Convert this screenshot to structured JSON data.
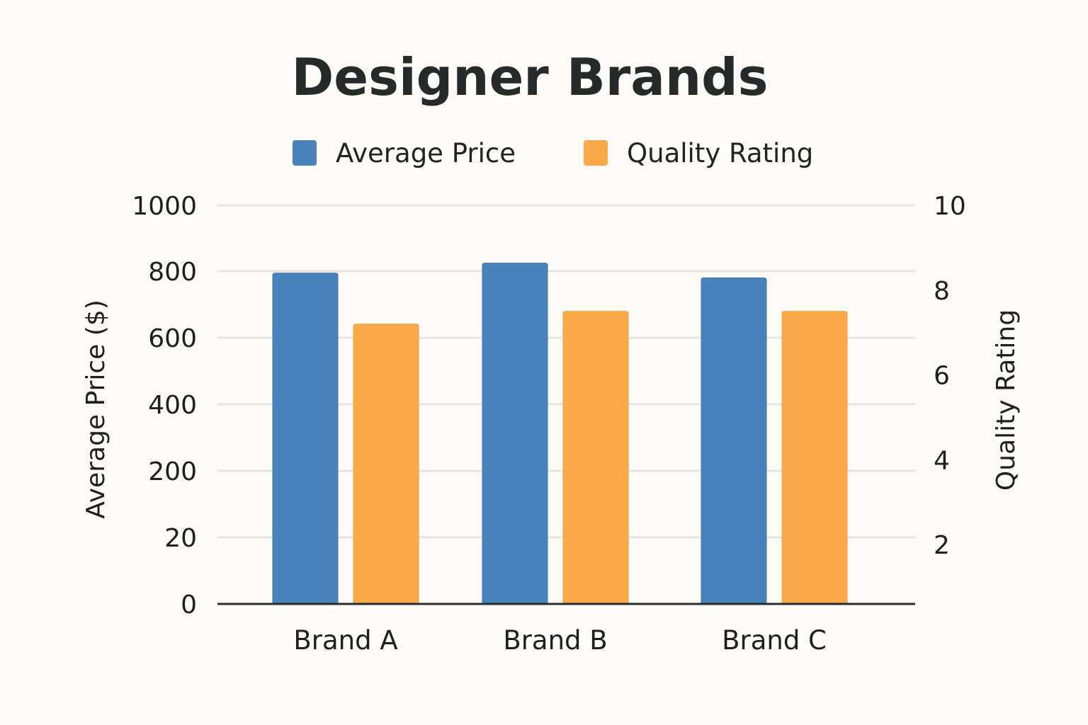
{
  "chart_data": {
    "type": "bar",
    "title": "Designer Brands",
    "categories": [
      "Brand A",
      "Brand B",
      "Brand C"
    ],
    "series": [
      {
        "name": "Average Price",
        "axis": "left",
        "color": "#4a82bb",
        "values": [
          830,
          855,
          818
        ]
      },
      {
        "name": "Quality Rating",
        "axis": "right",
        "color": "#fba94a",
        "values": [
          7.2,
          7.5,
          7.5
        ]
      }
    ],
    "ylabel": "Average Price ($)",
    "y2label": "Quality Rating",
    "left_ticks": [
      "0",
      "20",
      "200",
      "400",
      "600",
      "800",
      "1000"
    ],
    "right_ticks": [
      "2",
      "4",
      "6",
      "8",
      "10"
    ],
    "ylim": [
      0,
      1000
    ],
    "y2lim": [
      0.6,
      10
    ],
    "grid": true,
    "legend_position": "top"
  }
}
